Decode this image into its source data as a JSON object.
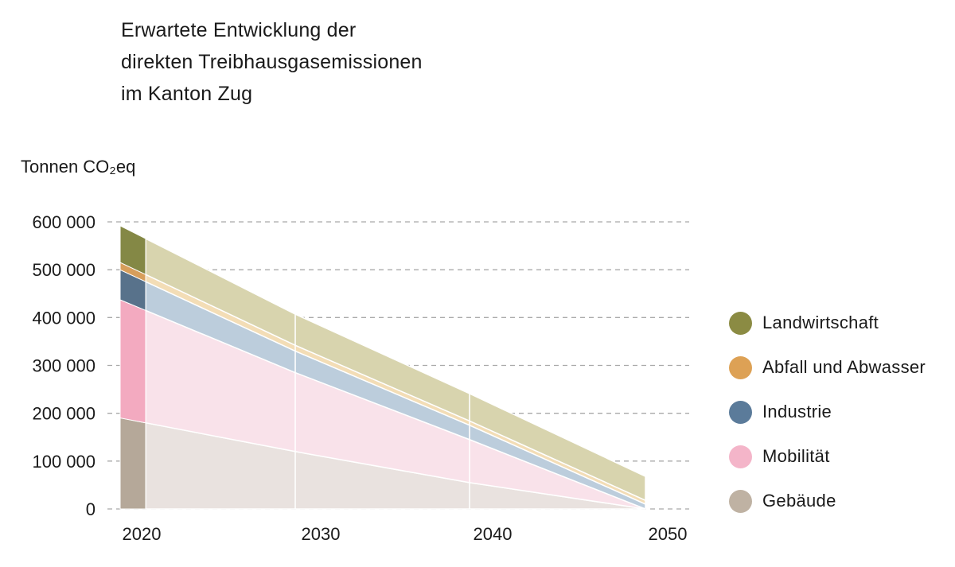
{
  "title_lines": [
    "Erwartete Entwicklung der",
    "direkten Treibhausgasemissionen",
    "im Kanton Zug"
  ],
  "chart_data": {
    "type": "area",
    "title": "Erwartete Entwicklung der direkten Treibhausgasemissionen im Kanton Zug",
    "ylabel": "Tonnen CO₂eq",
    "xlabel": "",
    "x_ticks": [
      "2020",
      "2030",
      "2040",
      "2050"
    ],
    "y_ticks": [
      "0",
      "100 000",
      "200 000",
      "300 000",
      "400 000",
      "500 000",
      "600 000"
    ],
    "y_tick_values": [
      0,
      100000,
      200000,
      300000,
      400000,
      500000,
      600000
    ],
    "ylim": [
      0,
      600000
    ],
    "x": [
      2020,
      2030,
      2040,
      2050
    ],
    "stacked": true,
    "base_year_bar": 2020,
    "grid": "horizontal-dashed",
    "legend_position": "right",
    "series": [
      {
        "name": "Gebäude",
        "values": [
          180000,
          120000,
          55000,
          0
        ],
        "color": "#bfb2a3",
        "bar_color": "#b5a899",
        "area_color": "#e9e2df"
      },
      {
        "name": "Mobilität",
        "values": [
          235000,
          165000,
          90000,
          0
        ],
        "color": "#f4b5c9",
        "bar_color": "#f3aac0",
        "area_color": "#f9e2ea"
      },
      {
        "name": "Industrie",
        "values": [
          60000,
          45000,
          30000,
          10000
        ],
        "color": "#5b7b9a",
        "bar_color": "#58728b",
        "area_color": "#bccddc"
      },
      {
        "name": "Abfall und Abwasser",
        "values": [
          15000,
          12000,
          9000,
          8000
        ],
        "color": "#dda155",
        "bar_color": "#d79e5b",
        "area_color": "#f3ddb6"
      },
      {
        "name": "Landwirtschaft",
        "values": [
          75000,
          65000,
          57000,
          50000
        ],
        "color": "#8b8b43",
        "bar_color": "#848845",
        "area_color": "#d8d4ae"
      }
    ]
  }
}
